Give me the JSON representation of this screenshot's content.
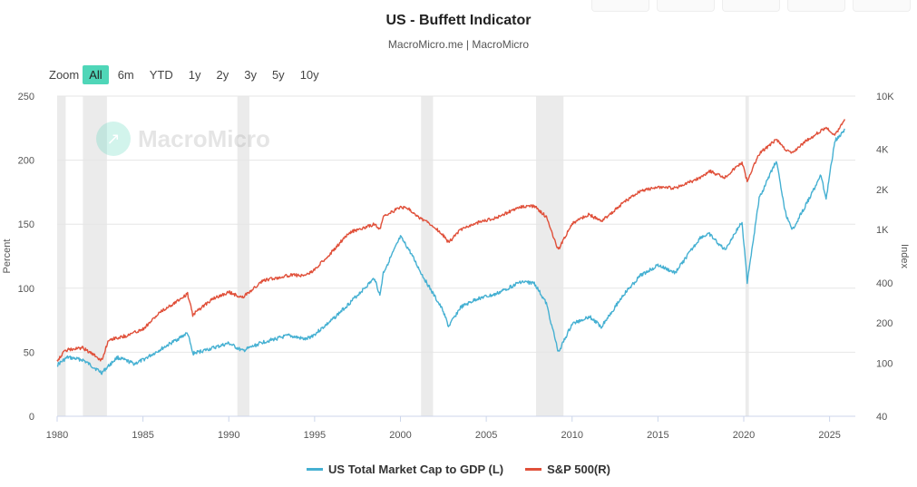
{
  "title": "US - Buffett Indicator",
  "subtitle": "MacroMicro.me | MacroMicro",
  "zoom": {
    "label": "Zoom",
    "options": [
      "All",
      "6m",
      "YTD",
      "1y",
      "2y",
      "3y",
      "5y",
      "10y"
    ],
    "active": "All"
  },
  "watermark": "MacroMicro",
  "colors": {
    "market_cap": "#45b0d2",
    "sp500": "#e0503a",
    "recession": "#ebebeb",
    "active_zoom": "#4fd6b8"
  },
  "chart_data": {
    "type": "line",
    "title": "US - Buffett Indicator",
    "x_ticks": [
      "1980",
      "1985",
      "1990",
      "1995",
      "2000",
      "2005",
      "2010",
      "2015",
      "2020",
      "2025"
    ],
    "y_left": {
      "label": "Percent",
      "ticks": [
        "0",
        "50",
        "100",
        "150",
        "200",
        "250"
      ],
      "range": [
        0,
        250
      ]
    },
    "y_right": {
      "label": "Index",
      "scale": "log",
      "ticks": [
        "40",
        "100",
        "200",
        "400",
        "1K",
        "2K",
        "4K",
        "10K"
      ],
      "tick_values": [
        40,
        100,
        200,
        400,
        1000,
        2000,
        4000,
        10000
      ],
      "range": [
        40,
        10000
      ]
    },
    "recessions": [
      [
        1980.0,
        1980.5
      ],
      [
        1981.5,
        1982.9
      ],
      [
        1990.5,
        1991.2
      ],
      [
        2001.2,
        2001.9
      ],
      [
        2007.9,
        2009.5
      ],
      [
        2020.1,
        2020.3
      ]
    ],
    "series": [
      {
        "name": "US Total Market Cap to GDP (L)",
        "axis": "left",
        "points": [
          [
            1980,
            40
          ],
          [
            1980.6,
            46
          ],
          [
            1981.5,
            44
          ],
          [
            1982.6,
            34
          ],
          [
            1983.5,
            46
          ],
          [
            1984.5,
            41
          ],
          [
            1985,
            44
          ],
          [
            1986,
            52
          ],
          [
            1987.6,
            65
          ],
          [
            1987.9,
            49
          ],
          [
            1989,
            53
          ],
          [
            1990,
            57
          ],
          [
            1990.8,
            51
          ],
          [
            1992,
            58
          ],
          [
            1993.5,
            63
          ],
          [
            1994.5,
            60
          ],
          [
            1995,
            64
          ],
          [
            1996,
            75
          ],
          [
            1997,
            88
          ],
          [
            1998.5,
            108
          ],
          [
            1998.8,
            94
          ],
          [
            1999,
            112
          ],
          [
            2000,
            140
          ],
          [
            2000.5,
            130
          ],
          [
            2001.2,
            112
          ],
          [
            2001.8,
            98
          ],
          [
            2002.5,
            82
          ],
          [
            2002.8,
            70
          ],
          [
            2003.5,
            85
          ],
          [
            2004.5,
            92
          ],
          [
            2005.5,
            95
          ],
          [
            2007,
            105
          ],
          [
            2007.8,
            104
          ],
          [
            2008.5,
            88
          ],
          [
            2009.2,
            50
          ],
          [
            2010,
            72
          ],
          [
            2011,
            78
          ],
          [
            2011.7,
            70
          ],
          [
            2013,
            95
          ],
          [
            2014,
            110
          ],
          [
            2015,
            118
          ],
          [
            2016,
            112
          ],
          [
            2017.5,
            140
          ],
          [
            2018,
            142
          ],
          [
            2018.9,
            130
          ],
          [
            2019.9,
            152
          ],
          [
            2020.2,
            105
          ],
          [
            2020.9,
            170
          ],
          [
            2021.9,
            200
          ],
          [
            2022.4,
            160
          ],
          [
            2022.8,
            145
          ],
          [
            2023.5,
            162
          ],
          [
            2024.5,
            188
          ],
          [
            2024.8,
            170
          ],
          [
            2025.3,
            215
          ],
          [
            2025.9,
            224
          ]
        ]
      },
      {
        "name": "S&P 500(R)",
        "axis": "right",
        "points": [
          [
            1980,
            105
          ],
          [
            1980.5,
            125
          ],
          [
            1981.5,
            130
          ],
          [
            1982.6,
            105
          ],
          [
            1983,
            150
          ],
          [
            1984,
            160
          ],
          [
            1985,
            180
          ],
          [
            1986,
            240
          ],
          [
            1987.6,
            330
          ],
          [
            1987.9,
            230
          ],
          [
            1989,
            300
          ],
          [
            1990,
            340
          ],
          [
            1990.8,
            310
          ],
          [
            1992,
            415
          ],
          [
            1993.5,
            455
          ],
          [
            1994.5,
            455
          ],
          [
            1995,
            500
          ],
          [
            1996,
            680
          ],
          [
            1997,
            950
          ],
          [
            1998.5,
            1100
          ],
          [
            1998.8,
            1000
          ],
          [
            1999,
            1250
          ],
          [
            2000,
            1470
          ],
          [
            2000.5,
            1430
          ],
          [
            2001.2,
            1200
          ],
          [
            2001.8,
            1100
          ],
          [
            2002.5,
            900
          ],
          [
            2002.8,
            800
          ],
          [
            2003.5,
            1000
          ],
          [
            2004.5,
            1130
          ],
          [
            2005.5,
            1220
          ],
          [
            2007,
            1480
          ],
          [
            2007.8,
            1500
          ],
          [
            2008.5,
            1250
          ],
          [
            2009.2,
            700
          ],
          [
            2010,
            1120
          ],
          [
            2011,
            1300
          ],
          [
            2011.7,
            1150
          ],
          [
            2013,
            1600
          ],
          [
            2014,
            1950
          ],
          [
            2015,
            2080
          ],
          [
            2016,
            2050
          ],
          [
            2017.5,
            2450
          ],
          [
            2018,
            2750
          ],
          [
            2018.9,
            2450
          ],
          [
            2019.9,
            3200
          ],
          [
            2020.2,
            2300
          ],
          [
            2020.9,
            3700
          ],
          [
            2021.9,
            4750
          ],
          [
            2022.4,
            4000
          ],
          [
            2022.8,
            3700
          ],
          [
            2023.5,
            4500
          ],
          [
            2024.5,
            5500
          ],
          [
            2024.8,
            5800
          ],
          [
            2025.3,
            5100
          ],
          [
            2025.9,
            6700
          ]
        ]
      }
    ]
  }
}
